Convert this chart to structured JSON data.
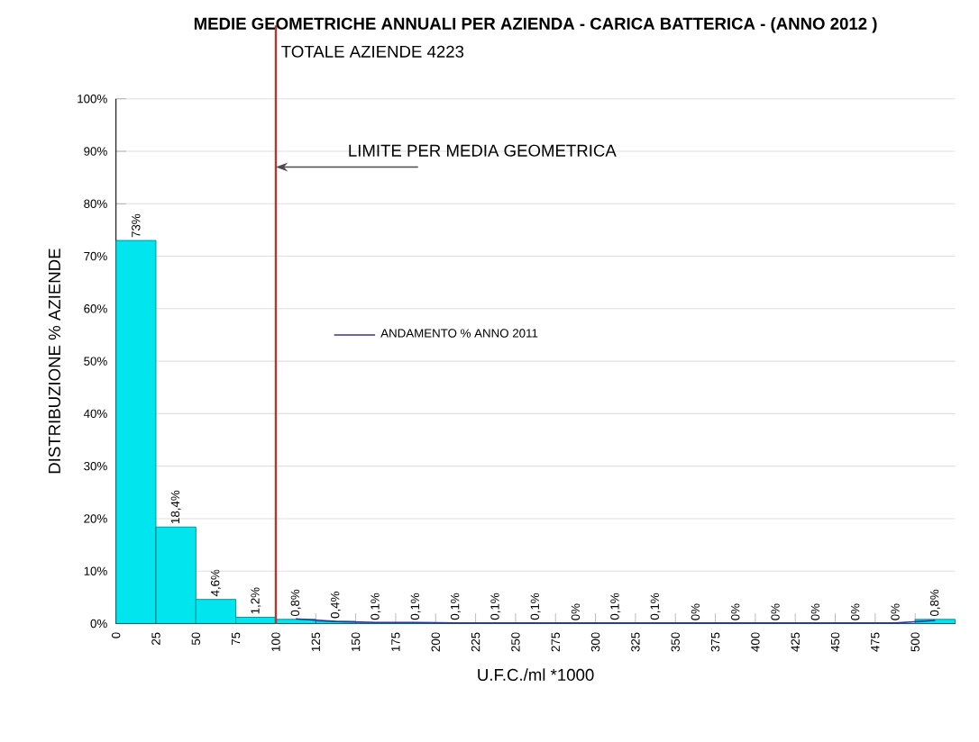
{
  "chart_data": {
    "type": "histogram",
    "title": "MEDIE GEOMETRICHE ANNUALI PER AZIENDA - CARICA BATTERICA - (ANNO  2012 )",
    "xlabel": "U.F.C./ml  *1000",
    "ylabel": "DISTRIBUZIONE % AZIENDE",
    "bins": [
      0,
      25,
      50,
      75,
      100,
      125,
      150,
      175,
      200,
      225,
      250,
      275,
      300,
      325,
      350,
      375,
      400,
      425,
      450,
      475,
      500,
      525
    ],
    "series": [
      {
        "color": "#00e5ee",
        "values": [
          73,
          18.4,
          4.6,
          1.2,
          0.8,
          0.4,
          0.1,
          0.1,
          0.1,
          0.1,
          0.1,
          0,
          0.1,
          0.1,
          0,
          0,
          0,
          0,
          0,
          0,
          0.8
        ],
        "value_labels": [
          "73%",
          "18,4%",
          "4,6%",
          "1,2%",
          "0,8%",
          "0,4%",
          "0,1%",
          "0,1%",
          "0,1%",
          "0,1%",
          "0,1%",
          "0%",
          "0,1%",
          "0,1%",
          "0%",
          "0%",
          "0%",
          "0%",
          "0%",
          "0%",
          "0,8%"
        ]
      },
      {
        "type": "line",
        "name": "ANDAMENTO % ANNO 2011",
        "color": "#333399",
        "x": [
          112.5,
          137.5,
          162.5,
          187.5,
          212.5,
          237.5,
          262.5,
          287.5,
          312.5,
          337.5,
          362.5,
          387.5,
          412.5,
          437.5,
          462.5,
          487.5,
          512.5
        ],
        "values": [
          0.9,
          0.4,
          0.2,
          0.2,
          0.1,
          0.1,
          0.1,
          0.1,
          0.1,
          0.1,
          0.1,
          0.1,
          0.1,
          0.1,
          0.1,
          0.1,
          0.6
        ]
      }
    ],
    "xlim": [
      0,
      525
    ],
    "xticks": [
      0,
      25,
      50,
      75,
      100,
      125,
      150,
      175,
      200,
      225,
      250,
      275,
      300,
      325,
      350,
      375,
      400,
      425,
      450,
      475,
      500
    ],
    "ylim": [
      0,
      100
    ],
    "yticks": [
      {
        "value": 0,
        "label": "0%"
      },
      {
        "value": 10,
        "label": "10%"
      },
      {
        "value": 20,
        "label": "20%"
      },
      {
        "value": 30,
        "label": "30%"
      },
      {
        "value": 40,
        "label": "40%"
      },
      {
        "value": 50,
        "label": "50%"
      },
      {
        "value": 60,
        "label": "60%"
      },
      {
        "value": 70,
        "label": "70%"
      },
      {
        "value": 80,
        "label": "80%"
      },
      {
        "value": 90,
        "label": "90%"
      },
      {
        "value": 100,
        "label": "100%"
      }
    ],
    "grid": "y",
    "legend": "center",
    "ref_lines": [
      {
        "axis": "x",
        "value": 100,
        "color": "#b03a2e",
        "label": "TOTALE AZIENDE 4223"
      }
    ],
    "annotations": [
      "LIMITE PER MEDIA GEOMETRICA"
    ]
  }
}
